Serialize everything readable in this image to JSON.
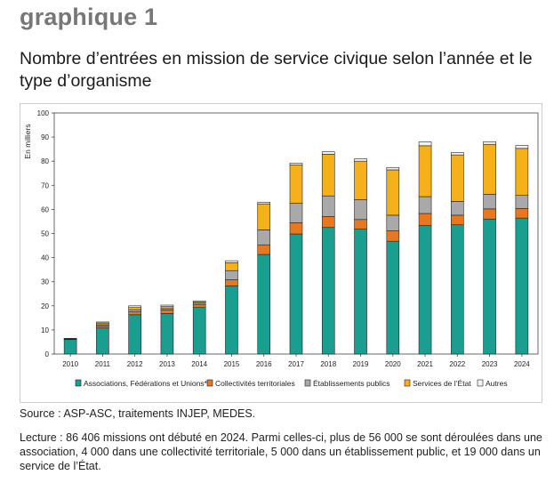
{
  "header": {
    "label": "graphique 1",
    "title": "Nombre d’entrées en mission de service civique selon l’année et le type d’organisme"
  },
  "chart_data": {
    "type": "bar",
    "stacked": true,
    "ylabel": "En milliers",
    "ylim": [
      0,
      100
    ],
    "yticks": [
      0,
      10,
      20,
      30,
      40,
      50,
      60,
      70,
      80,
      90,
      100
    ],
    "grid": false,
    "legend_position": "bottom",
    "categories": [
      "2010",
      "2011",
      "2012",
      "2013",
      "2014",
      "2015",
      "2016",
      "2017",
      "2018",
      "2019",
      "2020",
      "2021",
      "2022",
      "2023",
      "2024"
    ],
    "series": [
      {
        "name": "Associations, Fédérations et Unions*",
        "color": "#1a9e8f",
        "values": [
          6,
          10.8,
          16.3,
          16.8,
          19.3,
          28.3,
          41.3,
          49.8,
          52.5,
          51.8,
          46.8,
          53.3,
          53.6,
          56.0,
          56.4
        ]
      },
      {
        "name": "Collectivités territoriales",
        "color": "#e8781f",
        "values": [
          0.1,
          0.8,
          1.2,
          1.5,
          1.1,
          2.5,
          4.0,
          4.7,
          4.5,
          4.0,
          4.3,
          5.0,
          4.0,
          4.2,
          4.0
        ]
      },
      {
        "name": "Établissements publics",
        "color": "#a9a9a9",
        "values": [
          0.1,
          0.6,
          0.9,
          0.6,
          0.7,
          3.8,
          6.2,
          8.0,
          8.6,
          8.2,
          6.5,
          7.0,
          5.7,
          6.1,
          5.4
        ]
      },
      {
        "name": "Services de l’État",
        "color": "#f6b01a",
        "values": [
          0.2,
          0.7,
          0.9,
          0.8,
          0.4,
          3.3,
          10.8,
          15.9,
          17.3,
          16.0,
          18.8,
          21.1,
          19.3,
          20.7,
          19.5
        ]
      },
      {
        "name": "Autres",
        "color": "#f2f2f2",
        "values": [
          0.1,
          0.4,
          0.7,
          0.6,
          0.5,
          0.8,
          0.7,
          0.8,
          1.0,
          1.0,
          1.0,
          1.6,
          1.0,
          1.1,
          1.2
        ]
      }
    ]
  },
  "footer": {
    "source": "Source : ASP-ASC, traitements INJEP, MEDES.",
    "reading": "Lecture : 86 406 missions ont débuté en 2024. Parmi celles-ci, plus de 56 000 se sont déroulées dans une association, 4 000 dans une collectivité territoriale, 5 000 dans un établissement public, et 19 000 dans un service de l’État."
  }
}
